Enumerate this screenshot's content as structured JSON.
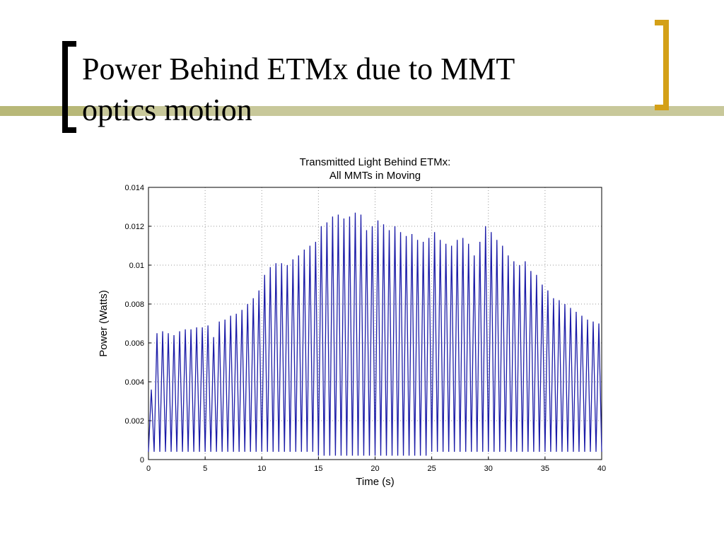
{
  "slide": {
    "title_lines": [
      "Power Behind ETMx due to MMT",
      "optics motion"
    ]
  },
  "chart_data": {
    "type": "line",
    "title_lines": [
      "Transmitted Light Behind ETMx:",
      "All MMTs in Moving"
    ],
    "x_label": "Time (s)",
    "y_label": "Power (Watts)",
    "color": "#1c1ca8",
    "grid": true,
    "xlim": [
      0,
      40
    ],
    "xticks": [
      0,
      5,
      10,
      15,
      20,
      25,
      30,
      35,
      40
    ],
    "ylim": [
      0,
      0.014
    ],
    "yticks": [
      0,
      0.002,
      0.004,
      0.006,
      0.008,
      0.01,
      0.012,
      0.014
    ],
    "x": [
      0,
      0.25,
      0.5,
      0.75,
      1,
      1.25,
      1.5,
      1.75,
      2,
      2.25,
      2.5,
      2.75,
      3,
      3.25,
      3.5,
      3.75,
      4,
      4.25,
      4.5,
      4.75,
      5,
      5.25,
      5.5,
      5.75,
      6,
      6.25,
      6.5,
      6.75,
      7,
      7.25,
      7.5,
      7.75,
      8,
      8.25,
      8.5,
      8.75,
      9,
      9.25,
      9.5,
      9.75,
      10,
      10.25,
      10.5,
      10.75,
      11,
      11.25,
      11.5,
      11.75,
      12,
      12.25,
      12.5,
      12.75,
      13,
      13.25,
      13.5,
      13.75,
      14,
      14.25,
      14.5,
      14.75,
      15,
      15.25,
      15.5,
      15.75,
      16,
      16.25,
      16.5,
      16.75,
      17,
      17.25,
      17.5,
      17.75,
      18,
      18.25,
      18.5,
      18.75,
      19,
      19.25,
      19.5,
      19.75,
      20,
      20.25,
      20.5,
      20.75,
      21,
      21.25,
      21.5,
      21.75,
      22,
      22.25,
      22.5,
      22.75,
      23,
      23.25,
      23.5,
      23.75,
      24,
      24.25,
      24.5,
      24.75,
      25,
      25.25,
      25.5,
      25.75,
      26,
      26.25,
      26.5,
      26.75,
      27,
      27.25,
      27.5,
      27.75,
      28,
      28.25,
      28.5,
      28.75,
      29,
      29.25,
      29.5,
      29.75,
      30,
      30.25,
      30.5,
      30.75,
      31,
      31.25,
      31.5,
      31.75,
      32,
      32.25,
      32.5,
      32.75,
      33,
      33.25,
      33.5,
      33.75,
      34,
      34.25,
      34.5,
      34.75,
      35,
      35.25,
      35.5,
      35.75,
      36,
      36.25,
      36.5,
      36.75,
      37,
      37.25,
      37.5,
      37.75,
      38,
      38.25,
      38.5,
      38.75,
      39,
      39.25,
      39.5,
      39.75,
      40
    ],
    "values": [
      0.0004,
      0.0036,
      0.0004,
      0.0065,
      0.0004,
      0.0066,
      0.0004,
      0.0065,
      0.0004,
      0.0064,
      0.0004,
      0.0066,
      0.0004,
      0.0067,
      0.0004,
      0.0067,
      0.0004,
      0.0068,
      0.0004,
      0.0068,
      0.0004,
      0.0069,
      0.0004,
      0.0063,
      0.0004,
      0.0071,
      0.0004,
      0.0072,
      0.0004,
      0.0074,
      0.0004,
      0.0075,
      0.0004,
      0.0077,
      0.0004,
      0.008,
      0.0004,
      0.0083,
      0.0004,
      0.0087,
      0.0004,
      0.0095,
      0.0004,
      0.0099,
      0.0004,
      0.0101,
      0.0004,
      0.0101,
      0.0004,
      0.01,
      0.0004,
      0.0103,
      0.0004,
      0.0105,
      0.0004,
      0.0108,
      0.0004,
      0.011,
      0.0004,
      0.0112,
      0.0002,
      0.012,
      0.0002,
      0.0122,
      0.0002,
      0.0125,
      0.0002,
      0.0126,
      0.0002,
      0.0124,
      0.0002,
      0.0125,
      0.0002,
      0.0127,
      0.0002,
      0.0126,
      0.0002,
      0.0118,
      0.0002,
      0.012,
      0.0002,
      0.0123,
      0.0002,
      0.0121,
      0.0002,
      0.0118,
      0.0002,
      0.012,
      0.0002,
      0.0117,
      0.0002,
      0.0115,
      0.0002,
      0.0116,
      0.0002,
      0.0113,
      0.0002,
      0.0112,
      0.0002,
      0.0114,
      0.0004,
      0.0117,
      0.0004,
      0.0113,
      0.0004,
      0.0111,
      0.0004,
      0.011,
      0.0004,
      0.0113,
      0.0004,
      0.0114,
      0.0004,
      0.0111,
      0.0004,
      0.0105,
      0.0004,
      0.0112,
      0.0004,
      0.012,
      0.0004,
      0.0117,
      0.0004,
      0.0113,
      0.0004,
      0.011,
      0.0004,
      0.0105,
      0.0004,
      0.0102,
      0.0004,
      0.01,
      0.0004,
      0.0102,
      0.0004,
      0.0097,
      0.0004,
      0.0095,
      0.0004,
      0.009,
      0.0004,
      0.0087,
      0.0004,
      0.0083,
      0.0004,
      0.0082,
      0.0004,
      0.008,
      0.0004,
      0.0078,
      0.0004,
      0.0076,
      0.0004,
      0.0074,
      0.0004,
      0.0072,
      0.0004,
      0.0071,
      0.0004,
      0.007,
      0.0004
    ]
  }
}
